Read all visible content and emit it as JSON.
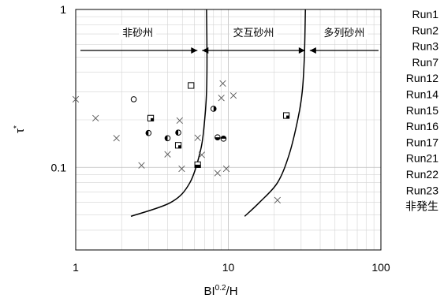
{
  "chart_data": {
    "type": "scatter",
    "xlabel": "BI",
    "xlabel_sup": "0.2",
    "xlabel_suffix": "/H",
    "ylabel": "τ",
    "ylabel_sup": "*",
    "x_scale": "log",
    "y_scale": "log",
    "xlim": [
      1,
      100
    ],
    "ylim": [
      0.03,
      1
    ],
    "x_ticks": [
      {
        "value": 1,
        "label": "1"
      },
      {
        "value": 10,
        "label": "10"
      },
      {
        "value": 100,
        "label": "100"
      }
    ],
    "y_ticks": [
      {
        "value": 0.1,
        "label": "0.1"
      },
      {
        "value": 1,
        "label": "1"
      }
    ],
    "grid": true,
    "legend_position": "right",
    "regions": [
      {
        "label": "非砂州",
        "x_from": 1,
        "x_to": 6.5
      },
      {
        "label": "交互砂州",
        "x_from": 6.5,
        "x_to": 33
      },
      {
        "label": "多列砂州",
        "x_from": 33,
        "x_to": 100
      }
    ],
    "boundary_curves": [
      {
        "points": [
          [
            2.3,
            0.049
          ],
          [
            4.2,
            0.06
          ],
          [
            5.6,
            0.08
          ],
          [
            6.6,
            0.13
          ],
          [
            7.0,
            0.2
          ],
          [
            7.2,
            0.3
          ],
          [
            7.25,
            0.5
          ],
          [
            7.2,
            1.0
          ]
        ]
      },
      {
        "points": [
          [
            12.8,
            0.049
          ],
          [
            16,
            0.06
          ],
          [
            21,
            0.08
          ],
          [
            25,
            0.12
          ],
          [
            28.5,
            0.2
          ],
          [
            30.5,
            0.3
          ],
          [
            31.5,
            0.5
          ],
          [
            32,
            1.0
          ]
        ]
      }
    ],
    "series": [
      {
        "name": "Run1",
        "marker": "circle-left-half",
        "points": [
          [
            3.0,
            0.165
          ],
          [
            4.0,
            0.153
          ],
          [
            4.7,
            0.166
          ]
        ]
      },
      {
        "name": "Run2",
        "marker": "circle-top-half",
        "points": [
          [
            9.3,
            0.152
          ]
        ]
      },
      {
        "name": "Run3",
        "marker": "circle-bottom-half",
        "points": [
          [
            8.5,
            0.155
          ]
        ]
      },
      {
        "name": "Run7",
        "marker": "circle-right-half",
        "points": [
          [
            8.0,
            0.235
          ]
        ]
      },
      {
        "name": "Run12",
        "marker": "square-quarter",
        "points": [
          [
            4.7,
            0.138
          ],
          [
            3.1,
            0.205
          ]
        ]
      },
      {
        "name": "Run14",
        "marker": "square-bottom-half",
        "points": [
          [
            6.3,
            0.104
          ]
        ]
      },
      {
        "name": "Run15",
        "marker": "square-quarter",
        "points": [
          [
            24,
            0.213
          ]
        ]
      },
      {
        "name": "Run16",
        "marker": "square-open",
        "points": [
          [
            5.7,
            0.33
          ]
        ]
      },
      {
        "name": "Run17",
        "marker": "circle-open",
        "points": [
          [
            2.4,
            0.27
          ]
        ]
      },
      {
        "name": "Run21",
        "marker": "x",
        "points": [
          [
            1.0,
            0.27
          ],
          [
            1.35,
            0.205
          ],
          [
            1.85,
            0.153
          ],
          [
            2.7,
            0.103
          ],
          [
            4.0,
            0.121
          ],
          [
            4.8,
            0.198
          ],
          [
            4.95,
            0.098
          ],
          [
            6.3,
            0.154
          ],
          [
            6.7,
            0.12
          ],
          [
            8.5,
            0.092
          ],
          [
            9.0,
            0.275
          ],
          [
            9.2,
            0.34
          ],
          [
            9.7,
            0.098
          ],
          [
            10.8,
            0.285
          ]
        ]
      },
      {
        "name": "Run22",
        "marker": "x",
        "points": [
          [
            21,
            0.062
          ]
        ]
      },
      {
        "name": "Run23",
        "marker": "x",
        "points": []
      },
      {
        "name": "非発生",
        "marker": "x",
        "points": []
      }
    ]
  }
}
